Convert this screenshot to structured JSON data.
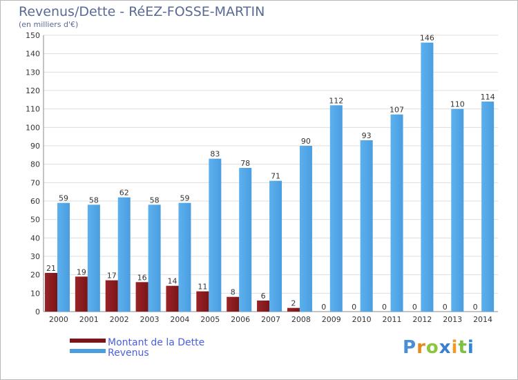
{
  "title": "Revenus/Dette - RéEZ-FOSSE-MARTIN",
  "subtitle": "(en milliers d'€)",
  "logo": {
    "text": "Proxiti",
    "letters": [
      "P",
      "r",
      "o",
      "x",
      "i",
      "t",
      "i"
    ],
    "colors": [
      "#4a8fd6",
      "#e58b1d",
      "#8cc63f",
      "#3a7fd0",
      "#ee9b28",
      "#7cc142",
      "#2f87d6"
    ]
  },
  "colors": {
    "debt": "#7a1518",
    "revenue": "#4a9ee0",
    "grid": "#dddddd",
    "axis": "#888888"
  },
  "chart_data": {
    "type": "bar",
    "title": "Revenus/Dette - RéEZ-FOSSE-MARTIN",
    "ylabel": "(en milliers d'€)",
    "xlabel": "",
    "ylim": [
      0,
      150
    ],
    "yticks": [
      0,
      10,
      20,
      30,
      40,
      50,
      60,
      70,
      80,
      90,
      100,
      110,
      120,
      130,
      140,
      150
    ],
    "grid": true,
    "legend_position": "bottom-left",
    "categories": [
      "2000",
      "2001",
      "2002",
      "2003",
      "2004",
      "2005",
      "2006",
      "2007",
      "2008",
      "2009",
      "2010",
      "2011",
      "2012",
      "2013",
      "2014"
    ],
    "series": [
      {
        "name": "Montant de la Dette",
        "values": [
          21,
          19,
          17,
          16,
          14,
          11,
          8,
          6,
          2,
          0,
          0,
          0,
          0,
          0,
          0
        ]
      },
      {
        "name": "Revenus",
        "values": [
          59,
          58,
          62,
          58,
          59,
          83,
          78,
          71,
          90,
          112,
          93,
          107,
          146,
          110,
          114
        ]
      }
    ]
  }
}
